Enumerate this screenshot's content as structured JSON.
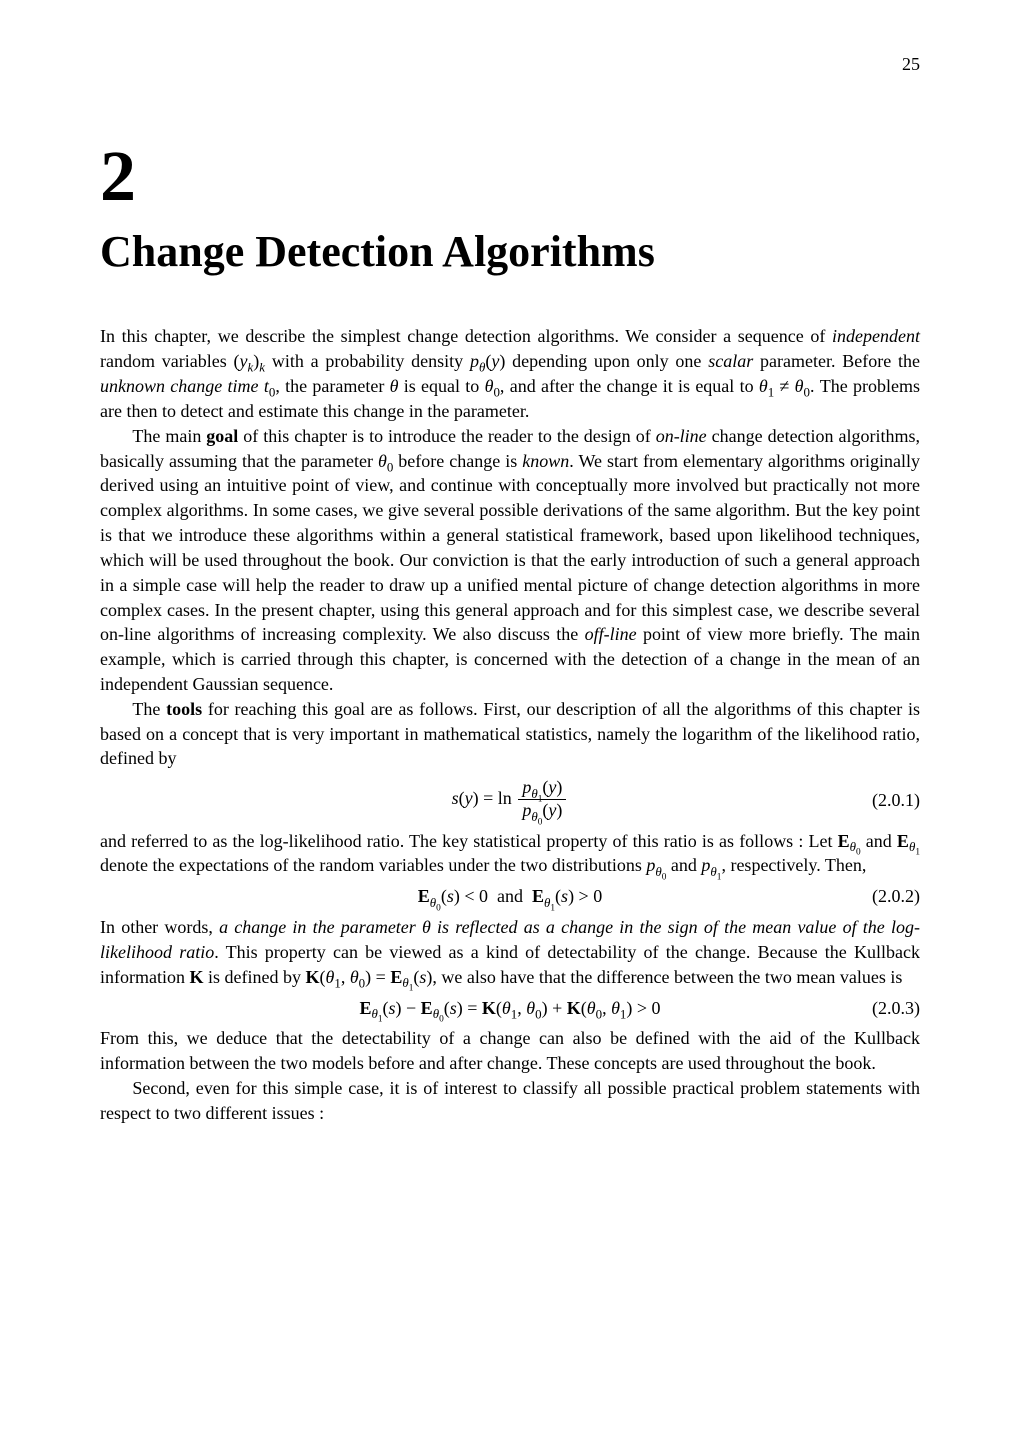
{
  "page_number": "25",
  "chapter_number": "2",
  "chapter_title": "Change Detection Algorithms",
  "para1": "In this chapter, we describe the simplest change detection algorithms. We consider a sequence of independent random variables (yₖ)ₖ with a probability density p_θ(y) depending upon only one scalar parameter. Before the unknown change time t₀, the parameter θ is equal to θ₀, and after the change it is equal to θ₁ ≠ θ₀. The problems are then to detect and estimate this change in the parameter.",
  "para2": "The main goal of this chapter is to introduce the reader to the design of on-line change detection algorithms, basically assuming that the parameter θ₀ before change is known. We start from elementary algorithms originally derived using an intuitive point of view, and continue with conceptually more involved but practically not more complex algorithms. In some cases, we give several possible derivations of the same algorithm. But the key point is that we introduce these algorithms within a general statistical framework, based upon likelihood techniques, which will be used throughout the book. Our conviction is that the early introduction of such a general approach in a simple case will help the reader to draw up a unified mental picture of change detection algorithms in more complex cases. In the present chapter, using this general approach and for this simplest case, we describe several on-line algorithms of increasing complexity. We also discuss the off-line point of view more briefly. The main example, which is carried through this chapter, is concerned with the detection of a change in the mean of an independent Gaussian sequence.",
  "para3": "The tools for reaching this goal are as follows. First, our description of all the algorithms of this chapter is based on a concept that is very important in mathematical statistics, namely the logarithm of the likelihood ratio, defined by",
  "eq1_lhs": "s(y) = ln",
  "eq1_num": "p_{θ₁}(y)",
  "eq1_den": "p_{θ₀}(y)",
  "eq1_label": "(2.0.1)",
  "para4": "and referred to as the log-likelihood ratio. The key statistical property of this ratio is as follows : Let 𝐄_{θ₀} and 𝐄_{θ₁} denote the expectations of the random variables under the two distributions p_{θ₀} and p_{θ₁}, respectively. Then,",
  "eq2": "𝐄_{θ₀}(s) < 0  and  𝐄_{θ₁}(s) > 0",
  "eq2_label": "(2.0.2)",
  "para5": "In other words, a change in the parameter θ is reflected as a change in the sign of the mean value of the log-likelihood ratio. This property can be viewed as a kind of detectability of the change. Because the Kullback information 𝐊 is defined by 𝐊(θ₁, θ₀) = 𝐄_{θ₁}(s), we also have that the difference between the two mean values is",
  "eq3": "𝐄_{θ₁}(s) − 𝐄_{θ₀}(s) = 𝐊(θ₁, θ₀) + 𝐊(θ₀, θ₁) > 0",
  "eq3_label": "(2.0.3)",
  "para6": "From this, we deduce that the detectability of a change can also be defined with the aid of the Kullback information between the two models before and after change. These concepts are used throughout the book.",
  "para7": "Second, even for this simple case, it is of interest to classify all possible practical problem statements with respect to two different issues :"
}
